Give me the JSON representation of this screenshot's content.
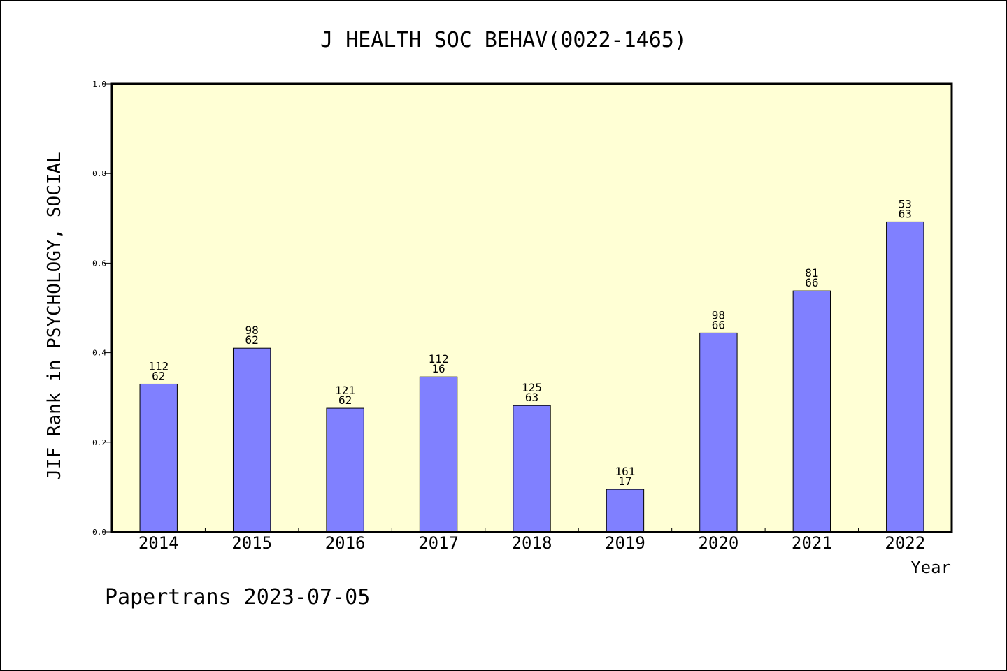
{
  "chart_data": {
    "type": "bar",
    "title": "J HEALTH SOC BEHAV(0022-1465)",
    "xlabel": "Year",
    "ylabel": "JIF Rank in PSYCHOLOGY, SOCIAL",
    "ylim": [
      0,
      1.0
    ],
    "yticks": [
      "0.0",
      "0.2",
      "0.4",
      "0.6",
      "0.8",
      "1.0"
    ],
    "categories": [
      "2014",
      "2015",
      "2016",
      "2017",
      "2018",
      "2019",
      "2020",
      "2021",
      "2022"
    ],
    "values": [
      0.33,
      0.41,
      0.276,
      0.346,
      0.282,
      0.095,
      0.444,
      0.538,
      0.692
    ],
    "labels_top": [
      "112",
      "98",
      "121",
      "112",
      "125",
      "161",
      "98",
      "81",
      "53"
    ],
    "labels_bottom": [
      "62",
      "62",
      "62",
      "16",
      "63",
      "17",
      "66",
      "66",
      "63"
    ],
    "grid": false,
    "colors": {
      "plot_background": "#ffffd5",
      "bar_fill": "#8080ff",
      "bar_stroke": "#000000"
    }
  },
  "footer": {
    "text": "Papertrans 2023-07-05"
  }
}
